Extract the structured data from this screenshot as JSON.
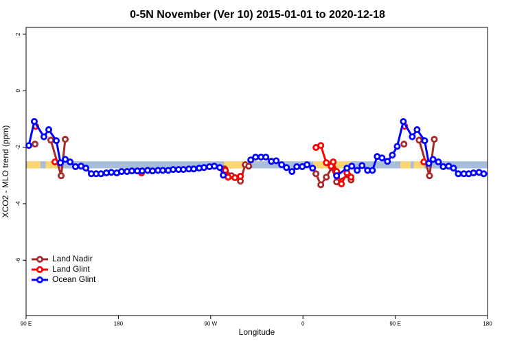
{
  "chart_data": {
    "type": "line",
    "title": "0-5N November (Ver 10)   2015-01-01 to 2020-12-18",
    "xlabel": "Longitude",
    "ylabel": "XCO2 - MLO trend (ppm)",
    "xlim": [
      90,
      540
    ],
    "ylim": [
      -7.96,
      2.24
    ],
    "xticks": [
      {
        "value": 90,
        "label": "90 E"
      },
      180,
      {
        "value": 270,
        "label": "90 W"
      },
      {
        "value": 360,
        "label": "0"
      },
      {
        "value": 450,
        "label": "90 E"
      },
      {
        "value": 540,
        "label": "180"
      }
    ],
    "yticks": [
      2,
      0,
      -2,
      -4,
      -6
    ],
    "band_range": [
      -2.5,
      -2.75
    ],
    "band_color": "#a7bdd9",
    "land_color": "#fbd673",
    "land_spans": [
      [
        91,
        104
      ],
      [
        109,
        121
      ],
      [
        283,
        307
      ],
      [
        370,
        407
      ],
      [
        455,
        465
      ],
      [
        468,
        478
      ]
    ],
    "legend": "bottom-left",
    "series": [
      {
        "name": "Land Nadir",
        "color": "#a52a2a",
        "x": [
          98.7,
          null,
          114.1,
          124.2,
          128.2,
          null,
          283.6,
          290.3,
          299.0,
          303.7,
          307.1,
          null,
          372.7,
          377.4,
          382.8,
          388.2,
          392.8,
          404.2,
          406.9,
          null,
          458.5,
          null,
          473.3,
          483.4,
          488.1
        ],
        "values": [
          -1.89,
          null,
          -1.75,
          -3.01,
          -1.72,
          null,
          -2.77,
          -3.01,
          -3.2,
          -2.62,
          -2.67,
          null,
          -2.94,
          -3.33,
          -3.06,
          -2.72,
          -3.23,
          -2.99,
          -3.16,
          null,
          -1.89,
          null,
          -1.75,
          -3.01,
          -1.72
        ]
      },
      {
        "name": "Land Glint",
        "color": "#ff0000",
        "x": [
          99.4,
          null,
          118.1,
          null,
          202.6,
          null,
          284.3,
          287.0,
          293.7,
          299.0,
          null,
          372.7,
          377.4,
          382.8,
          387.5,
          389.5,
          392.8,
          397.5,
          402.9,
          406.9,
          null,
          459.2,
          null,
          477.9
        ],
        "values": [
          -1.26,
          null,
          -2.52,
          null,
          -2.91,
          null,
          -2.82,
          -3.06,
          -3.08,
          -3.03,
          null,
          -2.01,
          -1.94,
          -2.55,
          -2.67,
          -2.52,
          -2.86,
          -3.3,
          -2.91,
          -3.06,
          null,
          -1.26,
          null,
          -2.52
        ]
      },
      {
        "name": "Ocean Glint",
        "color": "#0000ff",
        "x": [
          92.7,
          98.0,
          107.4,
          112.1,
          119.5,
          123.5,
          128.2,
          132.9,
          138.2,
          143.6,
          148.3,
          153.6,
          158.3,
          163.0,
          168.3,
          173.1,
          178.4,
          183.1,
          188.4,
          193.2,
          198.5,
          203.2,
          208.5,
          213.3,
          218.6,
          223.3,
          228.6,
          233.4,
          238.7,
          243.4,
          248.7,
          253.5,
          258.8,
          263.5,
          268.8,
          273.6,
          278.9,
          282.3,
          null,
          309.1,
          313.8,
          319.1,
          323.8,
          329.2,
          333.9,
          339.2,
          343.9,
          349.3,
          354.0,
          359.3,
          364.0,
          369.4,
          null,
          392.8,
          402.9,
          407.6,
          412.9,
          417.6,
          423.0,
          427.7,
          432.4,
          437.1,
          442.4,
          447.2,
          451.9,
          457.9,
          466.6,
          471.3,
          478.7,
          482.7,
          486.8,
          492.1,
          496.8,
          502.1,
          506.8,
          511.5,
          516.9,
          521.6,
          526.3,
          531.7,
          536.3
        ],
        "values": [
          -1.94,
          -1.09,
          -1.63,
          -1.38,
          -1.77,
          -2.55,
          -2.43,
          -2.52,
          -2.69,
          -2.67,
          -2.74,
          -2.94,
          -2.94,
          -2.94,
          -2.91,
          -2.89,
          -2.91,
          -2.86,
          -2.86,
          -2.84,
          -2.84,
          -2.84,
          -2.82,
          -2.84,
          -2.82,
          -2.82,
          -2.82,
          -2.79,
          -2.79,
          -2.79,
          -2.77,
          -2.77,
          -2.74,
          -2.72,
          -2.69,
          -2.67,
          -2.72,
          -2.99,
          null,
          -2.45,
          -2.35,
          -2.35,
          -2.35,
          -2.5,
          -2.48,
          -2.62,
          -2.72,
          -2.86,
          -2.69,
          -2.69,
          -2.62,
          -2.74,
          null,
          -3.01,
          -2.74,
          -2.67,
          -2.82,
          -2.65,
          -2.82,
          -2.82,
          -2.33,
          -2.38,
          -2.5,
          -2.28,
          -1.97,
          -1.09,
          -1.63,
          -1.38,
          -1.77,
          -2.57,
          -2.43,
          -2.52,
          -2.69,
          -2.67,
          -2.74,
          -2.94,
          -2.94,
          -2.94,
          -2.91,
          -2.89,
          -2.94
        ]
      }
    ]
  }
}
